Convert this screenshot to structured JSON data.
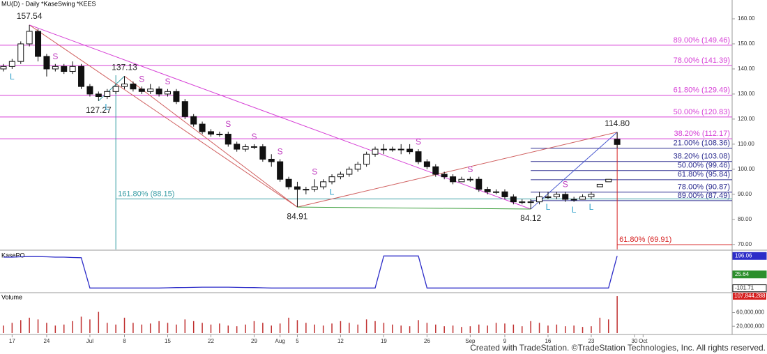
{
  "chart_data": {
    "type": "candlestick",
    "title": "MU(D) - Daily  *KaseSwing  *KEES",
    "footer": "Created with TradeStation. ©TradeStation Technologies, Inc. All rights reserved.",
    "ylim": [
      68,
      167.5
    ],
    "yticks": [
      {
        "value": 160,
        "label": "160.00"
      },
      {
        "value": 150,
        "label": "150.00"
      },
      {
        "value": 140,
        "label": "140.00"
      },
      {
        "value": 130,
        "label": "130.00"
      },
      {
        "value": 120,
        "label": "120.00"
      },
      {
        "value": 110,
        "label": "110.00"
      },
      {
        "value": 100,
        "label": "100.00"
      },
      {
        "value": 90,
        "label": "90.00"
      },
      {
        "value": 80,
        "label": "80.00"
      },
      {
        "value": 70,
        "label": "70.00"
      }
    ],
    "xlim": [
      -0.4,
      84.3
    ],
    "xticks": [
      {
        "value": 1,
        "label": "17"
      },
      {
        "value": 5,
        "label": "24"
      },
      {
        "value": 10,
        "label": "Jul"
      },
      {
        "value": 14,
        "label": "8"
      },
      {
        "value": 19,
        "label": "15"
      },
      {
        "value": 24,
        "label": "22"
      },
      {
        "value": 29,
        "label": "29"
      },
      {
        "value": 32,
        "label": "Aug"
      },
      {
        "value": 34,
        "label": "5"
      },
      {
        "value": 39,
        "label": "12"
      },
      {
        "value": 44,
        "label": "19"
      },
      {
        "value": 49,
        "label": "26"
      },
      {
        "value": 54,
        "label": "Sep"
      },
      {
        "value": 58,
        "label": "9"
      },
      {
        "value": 63,
        "label": "16"
      },
      {
        "value": 68,
        "label": "23"
      },
      {
        "value": 73,
        "label": "30"
      },
      {
        "value": 74,
        "label": "Oct"
      }
    ],
    "candles": [
      [
        140,
        142,
        139,
        141
      ],
      [
        141,
        144,
        140,
        143
      ],
      [
        143,
        151,
        142,
        150
      ],
      [
        150,
        157.54,
        149,
        155
      ],
      [
        155,
        156,
        143,
        145
      ],
      [
        145,
        146,
        137,
        140
      ],
      [
        140,
        142,
        139,
        141
      ],
      [
        141,
        142,
        138,
        139
      ],
      [
        139,
        143,
        138,
        141
      ],
      [
        141,
        142,
        132,
        133
      ],
      [
        133,
        134,
        129,
        130
      ],
      [
        130,
        131,
        127.27,
        129
      ],
      [
        129,
        132,
        128,
        131
      ],
      [
        131,
        134,
        130,
        133
      ],
      [
        133,
        137.13,
        132,
        134
      ],
      [
        134,
        135,
        131,
        132
      ],
      [
        132,
        133,
        130,
        131
      ],
      [
        131,
        134,
        130,
        132
      ],
      [
        132,
        133,
        129,
        130
      ],
      [
        130,
        132,
        129,
        131
      ],
      [
        131,
        132,
        126,
        127
      ],
      [
        127,
        128,
        120,
        121
      ],
      [
        121,
        122,
        117,
        118
      ],
      [
        118,
        119,
        114,
        115
      ],
      [
        115,
        116,
        113,
        114
      ],
      [
        114,
        115,
        113,
        114
      ],
      [
        114,
        115,
        109,
        110
      ],
      [
        110,
        111,
        107,
        108
      ],
      [
        108,
        110,
        107,
        109
      ],
      [
        109,
        110,
        108,
        109
      ],
      [
        109,
        110,
        103,
        104
      ],
      [
        104,
        106,
        101,
        103
      ],
      [
        103,
        104,
        95,
        96
      ],
      [
        96,
        97,
        92,
        93
      ],
      [
        93,
        95,
        84.91,
        92
      ],
      [
        92,
        93,
        90,
        92
      ],
      [
        92,
        96,
        91,
        93
      ],
      [
        93,
        96,
        92,
        95
      ],
      [
        95,
        98,
        94,
        97
      ],
      [
        97,
        99,
        96,
        98
      ],
      [
        98,
        101,
        97,
        100
      ],
      [
        100,
        103,
        99,
        102
      ],
      [
        102,
        107,
        101,
        106
      ],
      [
        106,
        109,
        105,
        108
      ],
      [
        108,
        110,
        106,
        108
      ],
      [
        108,
        109,
        107,
        108
      ],
      [
        108,
        110,
        106,
        108
      ],
      [
        108,
        110,
        106,
        107
      ],
      [
        107,
        108,
        102,
        103
      ],
      [
        103,
        104,
        100,
        101
      ],
      [
        101,
        102,
        97,
        98
      ],
      [
        98,
        99,
        96,
        97
      ],
      [
        97,
        98,
        94,
        95
      ],
      [
        95,
        97,
        95,
        96
      ],
      [
        96,
        97,
        95,
        96
      ],
      [
        96,
        97,
        91,
        92
      ],
      [
        92,
        93,
        90,
        91
      ],
      [
        91,
        92,
        90,
        91
      ],
      [
        91,
        92,
        88,
        89
      ],
      [
        89,
        90,
        86,
        87
      ],
      [
        87,
        88,
        86,
        87
      ],
      [
        87,
        88,
        84.12,
        87
      ],
      [
        87,
        91,
        86,
        89
      ],
      [
        89,
        91,
        88,
        89
      ],
      [
        89,
        91,
        88,
        90
      ],
      [
        90,
        91,
        87,
        88
      ],
      [
        88,
        89,
        87,
        88
      ],
      [
        88,
        90,
        88,
        89
      ],
      [
        89,
        91,
        88,
        90
      ],
      [
        93,
        94,
        93,
        94
      ],
      [
        95,
        96,
        95,
        96
      ],
      [
        112,
        114.8,
        108.5,
        109.88
      ]
    ],
    "swings": [
      {
        "value": 157.54,
        "label": "157.54",
        "index": 3
      },
      {
        "value": 137.13,
        "label": "137.13",
        "index": 14
      },
      {
        "value": 127.27,
        "label": "127.27",
        "index": 11
      },
      {
        "value": 84.91,
        "label": "84.91",
        "index": 34
      },
      {
        "value": 84.12,
        "label": "84.12",
        "index": 61
      },
      {
        "value": 114.8,
        "label": "114.80",
        "index": 71
      }
    ],
    "levels": [
      {
        "value": 149.46,
        "label": "89.00% (149.46)",
        "color": "#d63fd6",
        "from": 0
      },
      {
        "value": 141.39,
        "label": "78.00% (141.39)",
        "color": "#d63fd6",
        "from": 0
      },
      {
        "value": 129.49,
        "label": "61.80% (129.49)",
        "color": "#d63fd6",
        "from": 0
      },
      {
        "value": 120.83,
        "label": "50.00% (120.83)",
        "color": "#d63fd6",
        "from": 0
      },
      {
        "value": 112.17,
        "label": "38.20% (112.17)",
        "color": "#d63fd6",
        "from": 0
      },
      {
        "value": 108.36,
        "label": "21.00% (108.36)",
        "color": "#2b2b8f",
        "from": 61
      },
      {
        "value": 103.08,
        "label": "38.20% (103.08)",
        "color": "#2b2b8f",
        "from": 61
      },
      {
        "value": 99.46,
        "label": "50.00% (99.46)",
        "color": "#2b2b8f",
        "from": 61
      },
      {
        "value": 95.84,
        "label": "61.80% (95.84)",
        "color": "#2b2b8f",
        "from": 61
      },
      {
        "value": 90.87,
        "label": "78.00% (90.87)",
        "color": "#2b2b8f",
        "from": 61
      },
      {
        "value": 87.49,
        "label": "89.00% (87.49)",
        "color": "#2b2b8f",
        "from": 61
      },
      {
        "value": 88.15,
        "label": "161.80% (88.15)",
        "color": "#3a9ea5",
        "from": 13
      },
      {
        "value": 69.91,
        "label": "61.80% (69.91)",
        "color": "#d62020",
        "from": 71
      }
    ],
    "markers": [
      {
        "text": "S",
        "index": 6
      },
      {
        "text": "S",
        "index": 16
      },
      {
        "text": "S",
        "index": 19
      },
      {
        "text": "S",
        "index": 26
      },
      {
        "text": "S",
        "index": 29
      },
      {
        "text": "S",
        "index": 32
      },
      {
        "text": "S",
        "index": 36
      },
      {
        "text": "S",
        "index": 48
      },
      {
        "text": "S",
        "index": 54
      },
      {
        "text": "S",
        "index": 65
      },
      {
        "text": "L",
        "index": 1
      },
      {
        "text": "L",
        "index": 12
      },
      {
        "text": "L",
        "index": 38
      },
      {
        "text": "L",
        "index": 63
      },
      {
        "text": "L",
        "index": 66
      },
      {
        "text": "L",
        "index": 68
      }
    ],
    "kasepo": {
      "title": "KasePO",
      "ylim": [
        -130,
        230
      ],
      "labels": [
        {
          "value": 196.06,
          "label": "196.06",
          "color": "#2c2cc8"
        },
        {
          "value": 25.64,
          "label": "25.64",
          "color": "#2c8f2c"
        },
        {
          "value": -101.71,
          "label": "-101.71",
          "color": "#222"
        }
      ],
      "values": [
        185,
        185,
        188,
        190,
        190,
        188,
        185,
        185,
        182,
        180,
        -100,
        -100,
        -100,
        -100,
        -100,
        -100,
        -100,
        -100,
        -100,
        -98,
        -96,
        -95,
        -94,
        -92,
        -92,
        -92,
        -92,
        -94,
        -95,
        -96,
        -98,
        -100,
        -100,
        -100,
        -100,
        -100,
        -100,
        -100,
        -100,
        -100,
        -100,
        -100,
        -100,
        -100,
        196,
        196,
        196,
        196,
        196,
        -100,
        -100,
        -100,
        -100,
        -100,
        -100,
        -100,
        -100,
        -100,
        -100,
        -100,
        -100,
        -100,
        -100,
        -100,
        -100,
        -100,
        -100,
        -100,
        -100,
        -100,
        -100,
        196
      ]
    },
    "volume": {
      "title": "Volume",
      "ylim": [
        0,
        112000000
      ],
      "yticks": [
        {
          "value": 60000000,
          "label": "60,000,000"
        },
        {
          "value": 20000000,
          "label": "20,000,000"
        }
      ],
      "last_label": {
        "value": 107844288,
        "label": "107,844,288"
      },
      "values": [
        22000000,
        30000000,
        38000000,
        45000000,
        40000000,
        30000000,
        22000000,
        25000000,
        35000000,
        48000000,
        40000000,
        62000000,
        30000000,
        25000000,
        45000000,
        30000000,
        25000000,
        28000000,
        35000000,
        30000000,
        25000000,
        40000000,
        35000000,
        30000000,
        25000000,
        28000000,
        22000000,
        20000000,
        25000000,
        35000000,
        30000000,
        22000000,
        28000000,
        45000000,
        38000000,
        30000000,
        25000000,
        22000000,
        28000000,
        35000000,
        30000000,
        25000000,
        40000000,
        35000000,
        30000000,
        25000000,
        22000000,
        20000000,
        38000000,
        30000000,
        25000000,
        20000000,
        22000000,
        18000000,
        20000000,
        25000000,
        22000000,
        30000000,
        28000000,
        25000000,
        20000000,
        35000000,
        30000000,
        22000000,
        25000000,
        20000000,
        22000000,
        18000000,
        20000000,
        45000000,
        40000000,
        107844288
      ]
    }
  }
}
